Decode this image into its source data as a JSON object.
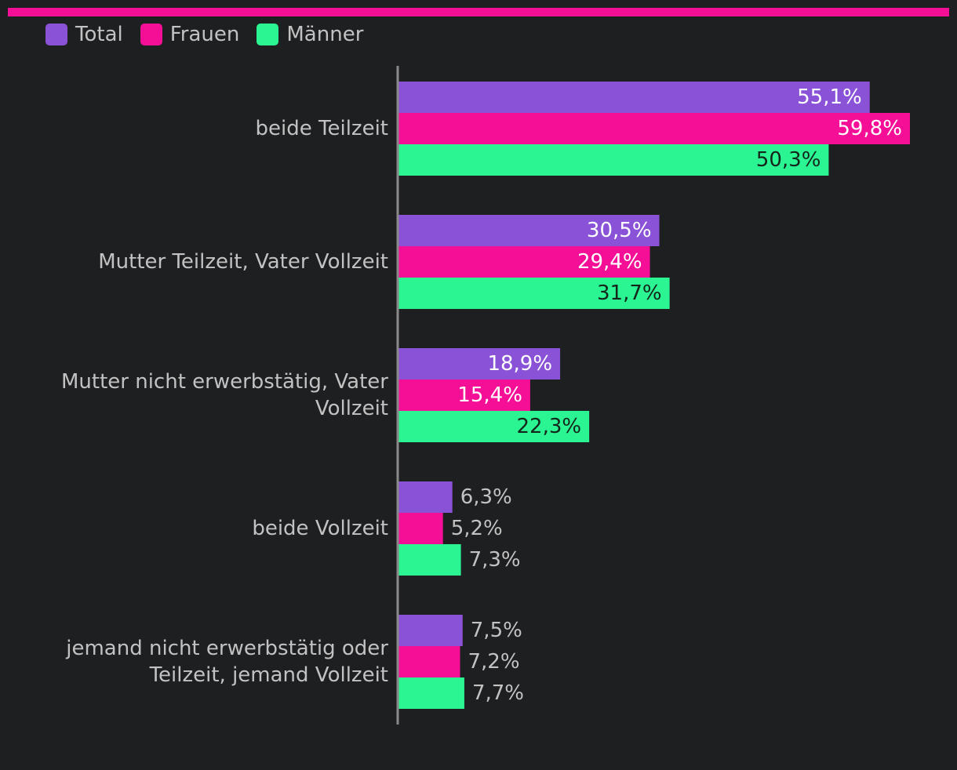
{
  "legend": {
    "items": [
      {
        "label": "Total",
        "color": "#8a52d6"
      },
      {
        "label": "Frauen",
        "color": "#f50f97"
      },
      {
        "label": "Männer",
        "color": "#2af592"
      }
    ]
  },
  "chart_data": {
    "type": "bar",
    "orientation": "horizontal",
    "categories": [
      [
        "beide Teilzeit"
      ],
      [
        "Mutter Teilzeit, Vater Vollzeit"
      ],
      [
        "Mutter nicht erwerbstätig, Vater",
        "Vollzeit"
      ],
      [
        "beide Vollzeit"
      ],
      [
        "jemand nicht erwerbstätig oder",
        "Teilzeit, jemand Vollzeit"
      ]
    ],
    "series": [
      {
        "name": "Total",
        "color": "#8a52d6",
        "label_color_inside": "#ffffff",
        "values": [
          55.1,
          30.5,
          18.9,
          6.3,
          7.5
        ],
        "labels": [
          "55,1%",
          "30,5%",
          "18,9%",
          "6,3%",
          "7,5%"
        ]
      },
      {
        "name": "Frauen",
        "color": "#f50f97",
        "label_color_inside": "#ffffff",
        "values": [
          59.8,
          29.4,
          15.4,
          5.2,
          7.2
        ],
        "labels": [
          "59,8%",
          "29,4%",
          "15,4%",
          "5,2%",
          "7,2%"
        ]
      },
      {
        "name": "Männer",
        "color": "#2af592",
        "label_color_inside": "#14251c",
        "values": [
          50.3,
          31.7,
          22.3,
          7.3,
          7.7
        ],
        "labels": [
          "50,3%",
          "31,7%",
          "22,3%",
          "7,3%",
          "7,7%"
        ]
      }
    ],
    "xlim": [
      0,
      60
    ],
    "title": "",
    "xlabel": "",
    "ylabel": "",
    "grid": false,
    "legend_position": "top-left",
    "outside_label_color": "#c2c2c2",
    "category_label_color": "#c2c2c2",
    "axis_color": "#8a8a8a"
  }
}
